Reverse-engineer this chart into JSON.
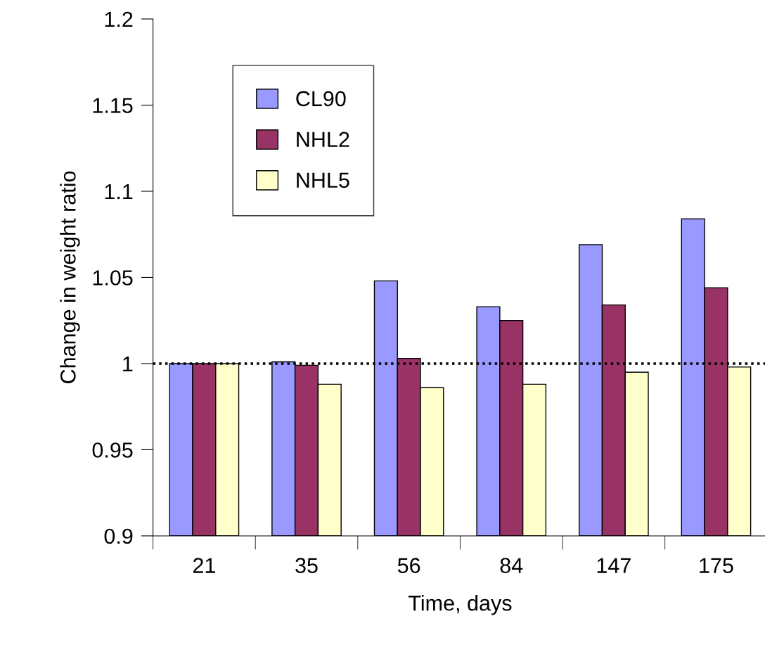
{
  "chart_data": {
    "type": "bar",
    "xlabel": "Time, days",
    "ylabel": "Change in weight ratio",
    "categories": [
      "21",
      "35",
      "56",
      "84",
      "147",
      "175"
    ],
    "series": [
      {
        "name": "CL90",
        "color": "#9999ff",
        "values": [
          1.0,
          1.001,
          1.048,
          1.033,
          1.069,
          1.084
        ]
      },
      {
        "name": "NHL2",
        "color": "#993366",
        "values": [
          1.0,
          0.999,
          1.003,
          1.025,
          1.034,
          1.044
        ]
      },
      {
        "name": "NHL5",
        "color": "#ffffcc",
        "values": [
          1.0,
          0.988,
          0.986,
          0.988,
          0.995,
          0.998
        ]
      }
    ],
    "ylim": [
      0.9,
      1.2
    ],
    "yticks": [
      0.9,
      0.95,
      1,
      1.05,
      1.1,
      1.15,
      1.2
    ],
    "ref_lines": [
      {
        "axis": "y",
        "value": 1,
        "line_style": "dotted",
        "color": "#000000"
      }
    ],
    "grid": false,
    "legend": "top left"
  }
}
